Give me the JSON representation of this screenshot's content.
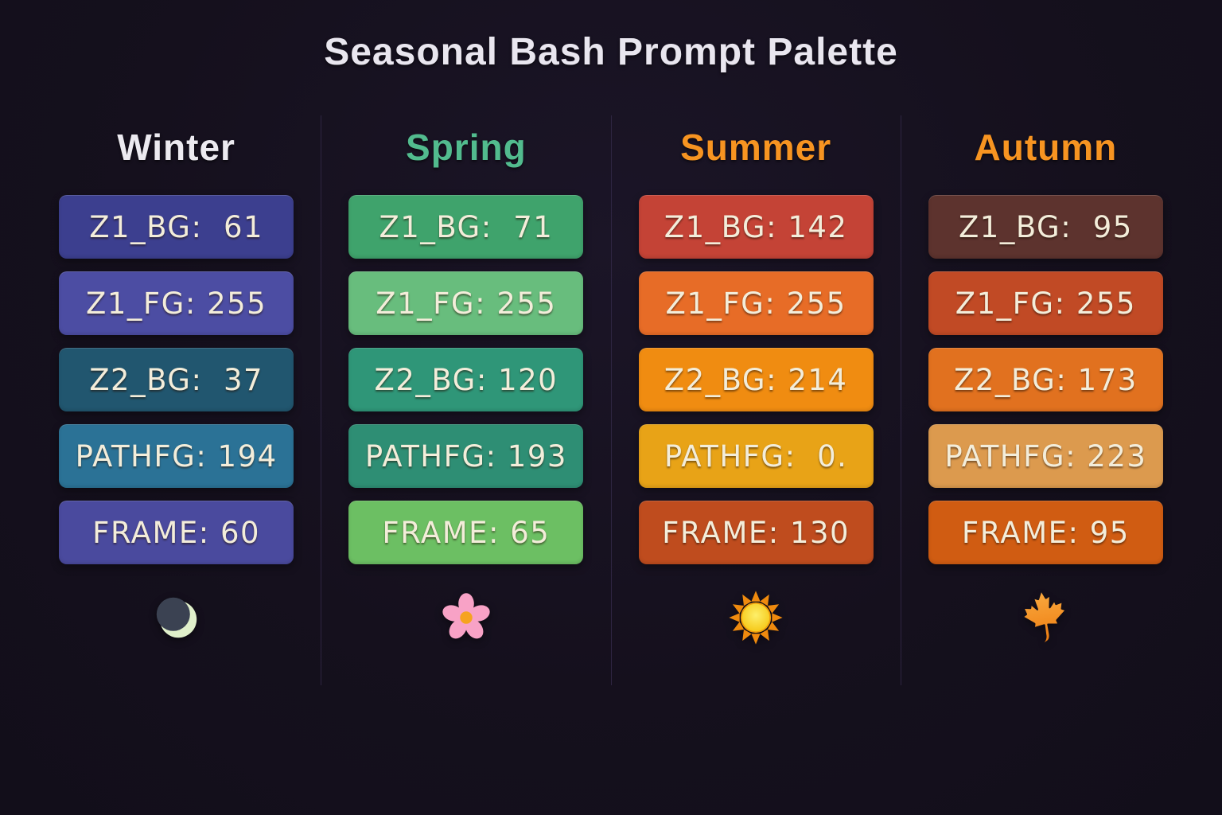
{
  "title": "Seasonal Bash Prompt Palette",
  "colors": {
    "background": "#15101d",
    "divider": "#2e2541",
    "chip_text": "#f3edda",
    "title_text": "#e9e6ef"
  },
  "columns": [
    {
      "season": "Winter",
      "header_color": "#eceaf0",
      "icon": "moon-icon",
      "chips": [
        {
          "label": "Z1_BG",
          "value": "61",
          "display": "Z1_BG:  61",
          "bg": "#3c3f8f"
        },
        {
          "label": "Z1_FG",
          "value": "255",
          "display": "Z1_FG: 255",
          "bg": "#4c4da3"
        },
        {
          "label": "Z2_BG",
          "value": "37",
          "display": "Z2_BG:  37",
          "bg": "#21566f"
        },
        {
          "label": "PATHFG",
          "value": "194",
          "display": "PATHFG: 194",
          "bg": "#2b7296"
        },
        {
          "label": "FRAME",
          "value": "60",
          "display": "FRAME: 60",
          "bg": "#4a4a9e"
        }
      ]
    },
    {
      "season": "Spring",
      "header_color": "#52bb8e",
      "icon": "cherry-blossom-icon",
      "chips": [
        {
          "label": "Z1_BG",
          "value": "71",
          "display": "Z1_BG:  71",
          "bg": "#3fa36c"
        },
        {
          "label": "Z1_FG",
          "value": "255",
          "display": "Z1_FG: 255",
          "bg": "#68bd7d"
        },
        {
          "label": "Z2_BG",
          "value": "120",
          "display": "Z2_BG: 120",
          "bg": "#2f9678"
        },
        {
          "label": "PATHFG",
          "value": "193",
          "display": "PATHFG: 193",
          "bg": "#2e8e74"
        },
        {
          "label": "FRAME",
          "value": "65",
          "display": "FRAME: 65",
          "bg": "#6cbf63"
        }
      ]
    },
    {
      "season": "Summer",
      "header_color": "#f79421",
      "icon": "sun-icon",
      "chips": [
        {
          "label": "Z1_BG",
          "value": "142",
          "display": "Z1_BG: 142",
          "bg": "#c44336"
        },
        {
          "label": "Z1_FG",
          "value": "255",
          "display": "Z1_FG: 255",
          "bg": "#e76c27"
        },
        {
          "label": "Z2_BG",
          "value": "214",
          "display": "Z2_BG: 214",
          "bg": "#f08c11"
        },
        {
          "label": "PATHFG",
          "value": "0.",
          "display": "PATHFG:  0.",
          "bg": "#e8a317"
        },
        {
          "label": "FRAME",
          "value": "130",
          "display": "FRAME: 130",
          "bg": "#bf4c1e"
        }
      ]
    },
    {
      "season": "Autumn",
      "header_color": "#f79421",
      "icon": "maple-leaf-icon",
      "chips": [
        {
          "label": "Z1_BG",
          "value": "95",
          "display": "Z1_BG:  95",
          "bg": "#5d332e"
        },
        {
          "label": "Z1_FG",
          "value": "255",
          "display": "Z1_FG: 255",
          "bg": "#c14a25"
        },
        {
          "label": "Z2_BG",
          "value": "173",
          "display": "Z2_BG: 173",
          "bg": "#e1711f"
        },
        {
          "label": "PATHFG",
          "value": "223",
          "display": "PATHFG: 223",
          "bg": "#dc9a4e"
        },
        {
          "label": "FRAME",
          "value": "95",
          "display": "FRAME: 95",
          "bg": "#d05c12"
        }
      ]
    }
  ]
}
